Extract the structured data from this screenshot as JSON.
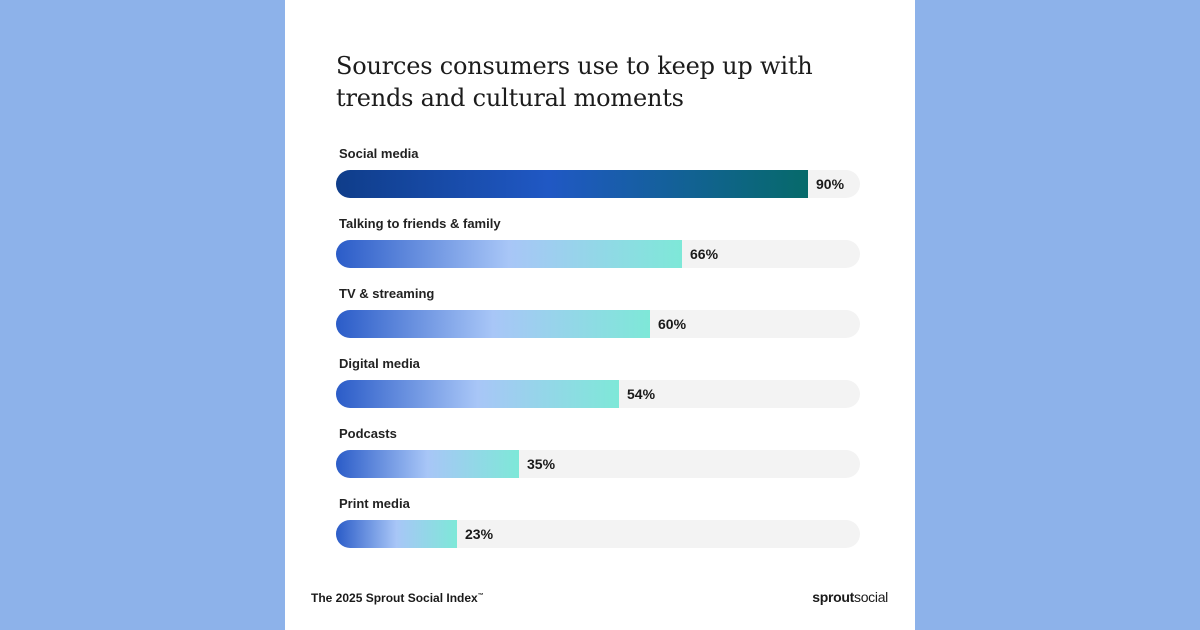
{
  "chart_data": {
    "type": "bar",
    "orientation": "horizontal",
    "title": "Sources consumers use to keep up with trends and cultural moments",
    "categories": [
      "Social media",
      "Talking to friends & family",
      "TV & streaming",
      "Digital media",
      "Podcasts",
      "Print media"
    ],
    "values": [
      90,
      66,
      60,
      54,
      35,
      23
    ],
    "value_labels": [
      "90%",
      "66%",
      "60%",
      "54%",
      "35%",
      "23%"
    ],
    "xlim": [
      0,
      100
    ],
    "grid": false,
    "legend": "none"
  },
  "footer": {
    "source": "The 2025 Sprout Social Index",
    "trademark": "™",
    "brand_bold": "sprout",
    "brand_light": "social"
  },
  "colors": {
    "background": "#8db2ea",
    "card": "#ffffff",
    "track": "#f3f3f3",
    "highlight_gradient": [
      "#0f3d8a",
      "#2058c4",
      "#066a6a"
    ],
    "bar_gradient": [
      "#2b5cc8",
      "#a8c6f7",
      "#7ee8d8"
    ]
  }
}
